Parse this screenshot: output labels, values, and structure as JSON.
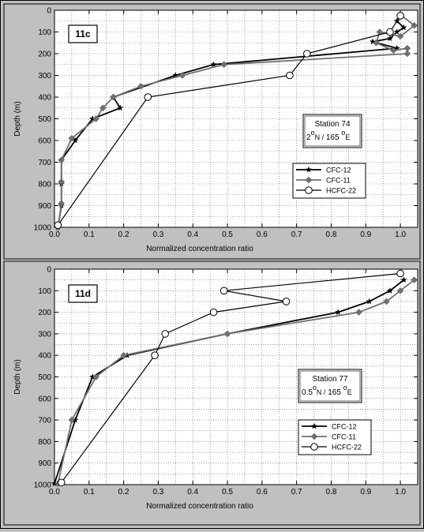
{
  "chart_data": [
    {
      "type": "line",
      "panel_label": "11c",
      "station": {
        "line1": "Station 74",
        "lat": "2",
        "lat_deg": "o",
        "lat_dir": "N /",
        "lon": "165",
        "lon_deg": "o",
        "lon_dir": "E"
      },
      "xlabel": "Normalized concentration ratio",
      "ylabel": "Depth   (m)",
      "xlim": [
        0,
        1.05
      ],
      "ylim": [
        1000,
        0
      ],
      "xticks": [
        "0.0",
        "0.1",
        "0.2",
        "0.3",
        "0.4",
        "0.5",
        "0.6",
        "0.7",
        "0.8",
        "0.9",
        "1.0"
      ],
      "yticks": [
        "0",
        "100",
        "200",
        "300",
        "400",
        "500",
        "600",
        "700",
        "800",
        "900",
        "1000"
      ],
      "grid": true,
      "legend_position": "middle-right",
      "series": [
        {
          "name": "CFC-12",
          "color": "#000000",
          "marker": "star",
          "points": [
            [
              1.0,
              20
            ],
            [
              0.99,
              50
            ],
            [
              1.01,
              80
            ],
            [
              0.99,
              100
            ],
            [
              0.97,
              130
            ],
            [
              0.92,
              145
            ],
            [
              0.99,
              175
            ],
            [
              0.46,
              250
            ],
            [
              0.35,
              300
            ],
            [
              0.17,
              400
            ],
            [
              0.19,
              450
            ],
            [
              0.11,
              500
            ],
            [
              0.06,
              600
            ],
            [
              0.02,
              690
            ],
            [
              0.02,
              800
            ],
            [
              0.02,
              900
            ],
            [
              0.01,
              1000
            ]
          ]
        },
        {
          "name": "CFC-11",
          "color": "#707070",
          "marker": "diamond",
          "points": [
            [
              1.0,
              20
            ],
            [
              1.04,
              70
            ],
            [
              1.0,
              120
            ],
            [
              0.94,
              100
            ],
            [
              0.93,
              150
            ],
            [
              0.98,
              185
            ],
            [
              1.02,
              175
            ],
            [
              1.02,
              200
            ],
            [
              0.49,
              250
            ],
            [
              0.37,
              300
            ],
            [
              0.25,
              350
            ],
            [
              0.17,
              400
            ],
            [
              0.14,
              450
            ],
            [
              0.12,
              500
            ],
            [
              0.05,
              590
            ],
            [
              0.02,
              690
            ],
            [
              0.02,
              790
            ],
            [
              0.02,
              890
            ],
            [
              0.01,
              1000
            ]
          ]
        },
        {
          "name": "HCFC-22",
          "color": "#000000",
          "marker": "circle",
          "points": [
            [
              1.0,
              25
            ],
            [
              0.97,
              100
            ],
            [
              0.73,
              200
            ],
            [
              0.68,
              300
            ],
            [
              0.27,
              400
            ],
            [
              0.01,
              990
            ]
          ]
        }
      ]
    },
    {
      "type": "line",
      "panel_label": "11d",
      "station": {
        "line1": "Station 77",
        "lat": "0.5",
        "lat_deg": "o",
        "lat_dir": "N /",
        "lon": "165",
        "lon_deg": "o",
        "lon_dir": "E"
      },
      "xlabel": "Normalized concentration ratio",
      "ylabel": "Depth   (m)",
      "xlim": [
        0,
        1.05
      ],
      "ylim": [
        1000,
        0
      ],
      "xticks": [
        "0.0",
        "0.1",
        "0.2",
        "0.3",
        "0.4",
        "0.5",
        "0.6",
        "0.7",
        "0.8",
        "0.9",
        "1.0"
      ],
      "yticks": [
        "0",
        "100",
        "200",
        "300",
        "400",
        "500",
        "600",
        "700",
        "800",
        "900",
        "1000"
      ],
      "grid": true,
      "legend_position": "bottom-right",
      "series": [
        {
          "name": "CFC-12",
          "color": "#000000",
          "marker": "star",
          "points": [
            [
              1.01,
              50
            ],
            [
              0.97,
              100
            ],
            [
              0.91,
              150
            ],
            [
              0.82,
              200
            ],
            [
              0.5,
              300
            ],
            [
              0.21,
              400
            ],
            [
              0.11,
              500
            ],
            [
              0.06,
              700
            ],
            [
              0.0,
              995
            ]
          ]
        },
        {
          "name": "CFC-11",
          "color": "#707070",
          "marker": "diamond",
          "points": [
            [
              1.04,
              50
            ],
            [
              1.0,
              100
            ],
            [
              0.96,
              150
            ],
            [
              0.88,
              200
            ],
            [
              0.5,
              300
            ],
            [
              0.2,
              400
            ],
            [
              0.12,
              500
            ],
            [
              0.05,
              700
            ],
            [
              0.01,
              995
            ]
          ]
        },
        {
          "name": "HCFC-22",
          "color": "#000000",
          "marker": "circle",
          "points": [
            [
              1.0,
              20
            ],
            [
              0.49,
              100
            ],
            [
              0.67,
              150
            ],
            [
              0.46,
              200
            ],
            [
              0.32,
              300
            ],
            [
              0.29,
              400
            ],
            [
              0.02,
              990
            ]
          ]
        }
      ]
    }
  ]
}
